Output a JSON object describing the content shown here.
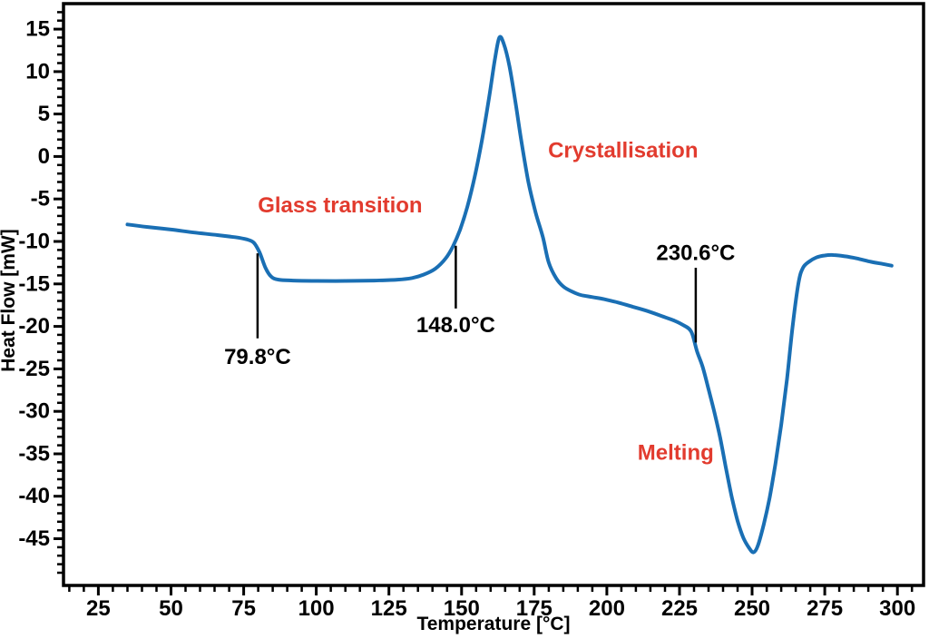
{
  "figure": {
    "bg_color": "#ffffff",
    "curve_color": "#1a6fb4",
    "annotation_red": "#e23b2e",
    "axis_color": "#000000"
  },
  "chart_data": {
    "type": "line",
    "title": "",
    "xlabel": "Temperature [°C]",
    "ylabel": "Heat Flow [mW]",
    "x_axis": {
      "label": "Temperature [°C]",
      "range": [
        13,
        309
      ],
      "major_ticks": [
        25,
        50,
        75,
        100,
        125,
        150,
        175,
        200,
        225,
        250,
        275,
        300
      ],
      "minor": {
        "from": 15,
        "to": 305,
        "step": 5
      }
    },
    "y_axis": {
      "label": "Heat Flow [mW]",
      "range": [
        -50.5,
        18
      ],
      "major_ticks": [
        15,
        10,
        5,
        0,
        -5,
        -10,
        -15,
        -20,
        -25,
        -30,
        -35,
        -40,
        -45
      ],
      "minor": {
        "from": -50,
        "to": 17,
        "step": 1
      }
    },
    "grid": false,
    "legend": "none",
    "series": [
      {
        "name": "heat_flow_curve",
        "color": "#1a6fb4",
        "points": [
          [
            35,
            -8.0
          ],
          [
            42,
            -8.3
          ],
          [
            50,
            -8.6
          ],
          [
            58,
            -8.95
          ],
          [
            66,
            -9.25
          ],
          [
            72,
            -9.5
          ],
          [
            76,
            -9.75
          ],
          [
            78.5,
            -10.15
          ],
          [
            80.5,
            -11.3
          ],
          [
            82.5,
            -13.1
          ],
          [
            84.5,
            -14.15
          ],
          [
            87,
            -14.5
          ],
          [
            92,
            -14.6
          ],
          [
            100,
            -14.65
          ],
          [
            110,
            -14.65
          ],
          [
            120,
            -14.6
          ],
          [
            128,
            -14.5
          ],
          [
            133,
            -14.3
          ],
          [
            137,
            -13.9
          ],
          [
            141,
            -13.2
          ],
          [
            144.5,
            -12.0
          ],
          [
            147,
            -10.6
          ],
          [
            149.5,
            -8.6
          ],
          [
            152,
            -5.9
          ],
          [
            154.5,
            -2.4
          ],
          [
            157,
            1.9
          ],
          [
            159.5,
            7.0
          ],
          [
            161.5,
            11.5
          ],
          [
            163,
            14.0
          ],
          [
            164.5,
            13.3
          ],
          [
            166.5,
            10.6
          ],
          [
            168.5,
            6.5
          ],
          [
            170.5,
            2.0
          ],
          [
            173,
            -3.0
          ],
          [
            175.5,
            -6.6
          ],
          [
            178,
            -9.5
          ],
          [
            180,
            -12.5
          ],
          [
            182.5,
            -14.3
          ],
          [
            185,
            -15.3
          ],
          [
            188,
            -15.9
          ],
          [
            191,
            -16.3
          ],
          [
            195,
            -16.55
          ],
          [
            199,
            -16.8
          ],
          [
            204,
            -17.2
          ],
          [
            209,
            -17.7
          ],
          [
            214,
            -18.2
          ],
          [
            219,
            -18.8
          ],
          [
            223,
            -19.3
          ],
          [
            226,
            -19.8
          ],
          [
            229,
            -20.6
          ],
          [
            231,
            -22.9
          ],
          [
            233,
            -24.8
          ],
          [
            235,
            -27.4
          ],
          [
            237,
            -30.1
          ],
          [
            239,
            -33.1
          ],
          [
            241,
            -36.7
          ],
          [
            243,
            -40.1
          ],
          [
            245,
            -42.9
          ],
          [
            247,
            -44.9
          ],
          [
            249,
            -46.1
          ],
          [
            250.5,
            -46.6
          ],
          [
            252,
            -45.8
          ],
          [
            254,
            -43.3
          ],
          [
            256,
            -40.2
          ],
          [
            258,
            -36.2
          ],
          [
            260,
            -31.6
          ],
          [
            262,
            -26.2
          ],
          [
            264,
            -19.8
          ],
          [
            266,
            -14.8
          ],
          [
            267.5,
            -13.1
          ],
          [
            269.5,
            -12.4
          ],
          [
            272,
            -11.9
          ],
          [
            275,
            -11.65
          ],
          [
            278,
            -11.6
          ],
          [
            282,
            -11.75
          ],
          [
            286,
            -12.0
          ],
          [
            291,
            -12.4
          ],
          [
            295,
            -12.65
          ],
          [
            298,
            -12.85
          ]
        ]
      }
    ],
    "annotations": {
      "phase_labels": [
        {
          "text": "Glass transition",
          "x": 108.2,
          "y": -5.8
        },
        {
          "text": "Crystallisation",
          "x": 205.6,
          "y": 0.7
        },
        {
          "text": "Melting",
          "x": 223.7,
          "y": -34.9
        }
      ],
      "temperature_markers": [
        {
          "label": "79.8°C",
          "temp": 79.8,
          "line_from_mw": -11.4,
          "line_to_mw": -21.4,
          "label_mw": -23.6,
          "label_position": "below"
        },
        {
          "label": "148.0°C",
          "temp": 148.0,
          "line_from_mw": -10.5,
          "line_to_mw": -17.9,
          "label_mw": -19.9,
          "label_position": "below"
        },
        {
          "label": "230.6°C",
          "temp": 230.6,
          "line_from_mw": -13.1,
          "line_to_mw": -21.9,
          "label_mw": -11.4,
          "label_position": "above"
        }
      ]
    }
  }
}
